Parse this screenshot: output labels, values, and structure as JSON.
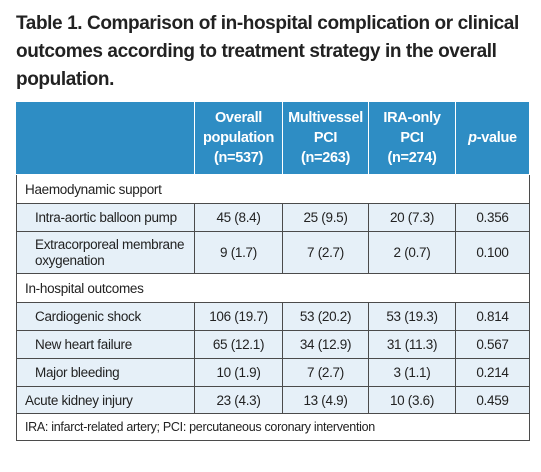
{
  "caption": {
    "line1": "Table 1. Comparison of in-hospital complication or clinical",
    "line2": "outcomes according to treatment strategy in the overall",
    "line3": "population."
  },
  "header": {
    "col1": [
      "Overall",
      "population",
      "(n=537)"
    ],
    "col2": [
      "Multivessel",
      "PCI",
      "(n=263)"
    ],
    "col3": [
      "IRA-only",
      "PCI",
      "(n=274)"
    ],
    "col4_italic": "p",
    "col4_rest": "-value"
  },
  "sections": {
    "haemodynamic": "Haemodynamic support",
    "inhospital": "In-hospital outcomes"
  },
  "rows": {
    "iabp": {
      "label": "Intra-aortic balloon pump",
      "overall": "45 (8.4)",
      "multi": "25 (9.5)",
      "ira": "20 (7.3)",
      "p": "0.356"
    },
    "ecmo": {
      "label1": "Extracorporeal membrane",
      "label2": "oxygenation",
      "overall": "9 (1.7)",
      "multi": "7 (2.7)",
      "ira": "2 (0.7)",
      "p": "0.100"
    },
    "shock": {
      "label": "Cardiogenic shock",
      "overall": "106 (19.7)",
      "multi": "53 (20.2)",
      "ira": "53 (19.3)",
      "p": "0.814"
    },
    "hf": {
      "label": "New heart failure",
      "overall": "65 (12.1)",
      "multi": "34 (12.9)",
      "ira": "31 (11.3)",
      "p": "0.567"
    },
    "bleed": {
      "label": "Major bleeding",
      "overall": "10 (1.9)",
      "multi": "7 (2.7)",
      "ira": "3 (1.1)",
      "p": "0.214"
    },
    "aki": {
      "label": "Acute kidney injury",
      "overall": "23 (4.3)",
      "multi": "13 (4.9)",
      "ira": "10 (3.6)",
      "p": "0.459"
    }
  },
  "footnote": "IRA: infarct-related artery; PCI: percutaneous coronary intervention",
  "colors": {
    "header_bg": "#2e8dc4",
    "row_shade": "#e6f0f8"
  }
}
